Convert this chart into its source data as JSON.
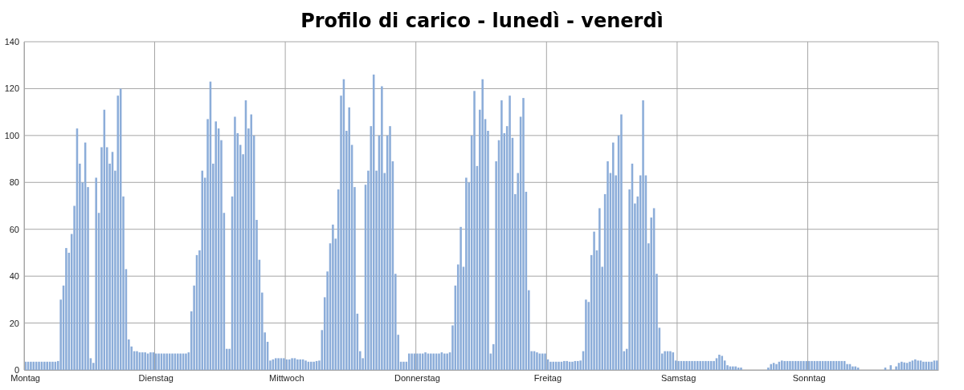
{
  "chart_data": {
    "type": "bar",
    "title": "Profilo di carico - lunedì - venerdì",
    "categories": [
      "Montag",
      null,
      null,
      null,
      null,
      null,
      null,
      null,
      null,
      null,
      null,
      null,
      null,
      null,
      null,
      null,
      null,
      null,
      null,
      null,
      null,
      null,
      null,
      null,
      null,
      null,
      null,
      null,
      null,
      null,
      null,
      null,
      null,
      null,
      null,
      null,
      null,
      null,
      null,
      null,
      null,
      null,
      null,
      null,
      null,
      null,
      null,
      null,
      "Dienstag",
      null,
      null,
      null,
      null,
      null,
      null,
      null,
      null,
      null,
      null,
      null,
      null,
      null,
      null,
      null,
      null,
      null,
      null,
      null,
      null,
      null,
      null,
      null,
      null,
      null,
      null,
      null,
      null,
      null,
      null,
      null,
      null,
      null,
      null,
      null,
      null,
      null,
      null,
      null,
      null,
      null,
      null,
      null,
      null,
      null,
      null,
      null,
      "Mittwoch",
      null,
      null,
      null,
      null,
      null,
      null,
      null,
      null,
      null,
      null,
      null,
      null,
      null,
      null,
      null,
      null,
      null,
      null,
      null,
      null,
      null,
      null,
      null,
      null,
      null,
      null,
      null,
      null,
      null,
      null,
      null,
      null,
      null,
      null,
      null,
      null,
      null,
      null,
      null,
      null,
      null,
      null,
      null,
      null,
      null,
      null,
      null,
      "Donnerstag",
      null,
      null,
      null,
      null,
      null,
      null,
      null,
      null,
      null,
      null,
      null,
      null,
      null,
      null,
      null,
      null,
      null,
      null,
      null,
      null,
      null,
      null,
      null,
      null,
      null,
      null,
      null,
      null,
      null,
      null,
      null,
      null,
      null,
      null,
      null,
      null,
      null,
      null,
      null,
      null,
      null,
      null,
      null,
      null,
      null,
      null,
      null,
      "Freitag",
      null,
      null,
      null,
      null,
      null,
      null,
      null,
      null,
      null,
      null,
      null,
      null,
      null,
      null,
      null,
      null,
      null,
      null,
      null,
      null,
      null,
      null,
      null,
      null,
      null,
      null,
      null,
      null,
      null,
      null,
      null,
      null,
      null,
      null,
      null,
      null,
      null,
      null,
      null,
      null,
      null,
      null,
      null,
      null,
      null,
      null,
      null,
      "Samstag",
      null,
      null,
      null,
      null,
      null,
      null,
      null,
      null,
      null,
      null,
      null,
      null,
      null,
      null,
      null,
      null,
      null,
      null,
      null,
      null,
      null,
      null,
      null,
      null,
      null,
      null,
      null,
      null,
      null,
      null,
      null,
      null,
      null,
      null,
      null,
      null,
      null,
      null,
      null,
      null,
      null,
      null,
      null,
      null,
      null,
      null,
      null,
      "Sonntag",
      null,
      null,
      null,
      null,
      null,
      null,
      null,
      null,
      null,
      null,
      null,
      null,
      null,
      null,
      null,
      null,
      null,
      null,
      null,
      null,
      null,
      null,
      null,
      null,
      null,
      null,
      null,
      null,
      null,
      null,
      null,
      null,
      null,
      null,
      null,
      null,
      null,
      null,
      null,
      null,
      null,
      null,
      null,
      null,
      null,
      null,
      null
    ],
    "values": [
      3.5,
      3.5,
      3.5,
      3.5,
      3.5,
      3.5,
      3.5,
      3.5,
      3.5,
      3.5,
      3.5,
      3.5,
      3.8,
      30,
      36,
      52,
      50,
      58,
      70,
      103,
      88,
      80,
      97,
      78,
      5,
      3,
      82,
      67,
      95,
      111,
      95,
      88,
      93,
      85,
      117,
      120,
      74,
      43,
      13,
      10,
      8,
      8,
      7.5,
      7.5,
      7.5,
      7,
      7.5,
      7.5,
      7,
      7,
      7,
      7,
      7,
      7,
      7,
      7,
      7,
      7,
      7,
      7,
      7.5,
      25,
      36,
      49,
      51,
      85,
      82,
      107,
      123,
      88,
      106,
      103,
      98,
      67,
      9,
      9,
      74,
      108,
      101,
      96,
      92,
      115,
      103,
      109,
      100,
      64,
      47,
      33,
      16,
      12,
      4,
      4.5,
      5,
      5,
      5,
      5,
      4.5,
      4.5,
      5,
      5,
      4.5,
      4.5,
      4.5,
      4,
      3.5,
      3.5,
      3.5,
      3.8,
      4,
      17,
      31,
      42,
      54,
      62,
      56,
      77,
      117,
      124,
      102,
      112,
      96,
      78,
      24,
      8,
      5,
      79,
      85,
      104,
      126,
      85,
      100,
      121,
      84,
      100,
      104,
      89,
      41,
      15,
      3.5,
      3.5,
      3.5,
      7,
      7,
      7,
      7,
      7,
      7,
      7.5,
      7,
      7,
      7,
      7,
      7,
      7.5,
      7,
      7,
      7.5,
      19,
      36,
      45,
      61,
      44,
      82,
      80,
      100,
      119,
      87,
      111,
      124,
      107,
      102,
      7,
      11,
      89,
      98,
      115,
      101,
      104,
      117,
      99,
      75,
      84,
      108,
      116,
      76,
      34,
      8,
      8,
      7.5,
      7,
      7,
      7,
      4.5,
      3.5,
      3.5,
      3.5,
      3.5,
      3.5,
      3.8,
      3.8,
      3.5,
      3.5,
      3.8,
      3.8,
      4,
      8,
      30,
      29,
      49,
      59,
      51,
      69,
      44,
      75,
      89,
      84,
      97,
      83,
      100,
      109,
      8,
      9,
      77,
      88,
      71,
      74,
      83,
      115,
      83,
      54,
      65,
      69,
      41,
      18,
      7,
      8,
      8,
      8,
      7.5,
      4,
      3.8,
      3.8,
      3.8,
      3.8,
      3.8,
      3.8,
      3.8,
      3.8,
      3.8,
      3.8,
      3.8,
      3.8,
      3.8,
      3.8,
      5,
      6.5,
      6,
      4,
      2,
      1.5,
      1.5,
      1.5,
      1,
      1,
      null,
      null,
      0,
      0,
      0,
      0,
      0,
      0,
      0,
      1,
      2.5,
      3,
      2.5,
      3.5,
      4,
      3.8,
      3.8,
      3.8,
      3.8,
      3.8,
      3.8,
      3.8,
      3.8,
      3.8,
      3.8,
      3.8,
      3.8,
      3.8,
      3.8,
      3.8,
      3.8,
      3.8,
      3.8,
      3.8,
      3.8,
      3.8,
      3.8,
      3.8,
      2.5,
      2.5,
      1.5,
      1.5,
      1,
      null,
      0,
      0,
      0,
      0,
      0,
      null,
      0,
      null,
      1,
      0,
      2,
      0,
      1.5,
      3,
      3.5,
      3.2,
      3,
      3.5,
      4,
      4.5,
      4,
      4,
      3.5,
      3.5,
      3.5,
      3.5,
      4,
      4
    ],
    "color": "#8cadd9",
    "ylim": [
      0,
      140
    ],
    "yticks": [
      0,
      20,
      40,
      60,
      80,
      100,
      120,
      140
    ],
    "grid": true
  }
}
